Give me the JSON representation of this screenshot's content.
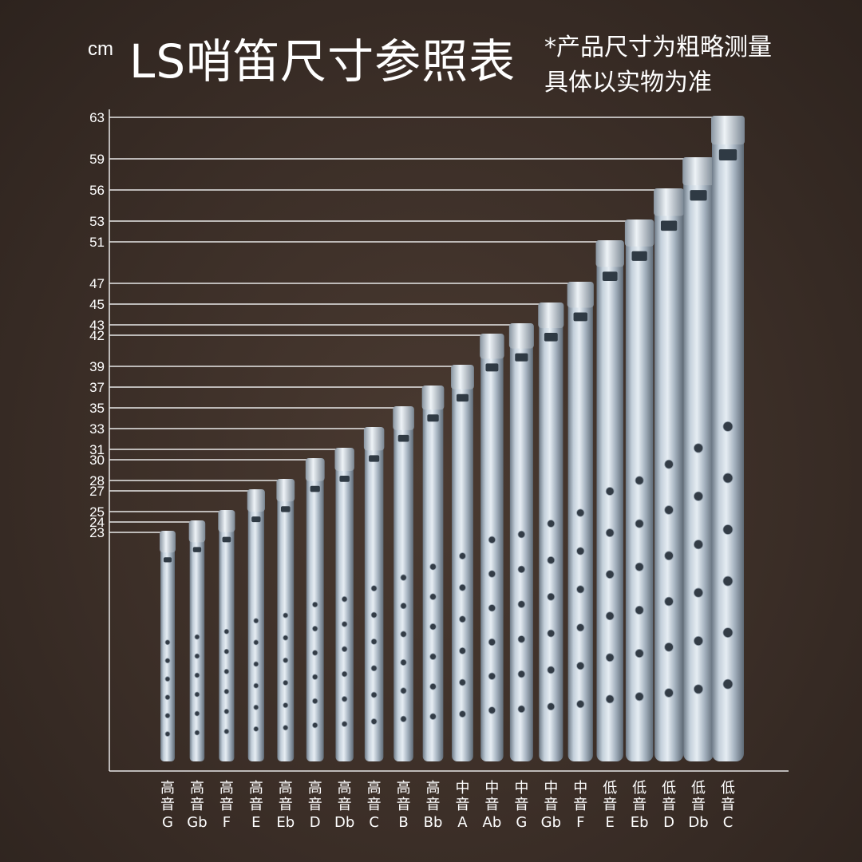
{
  "header": {
    "unit": "cm",
    "title": "LS哨笛尺寸参照表",
    "note_line1": "*产品尺寸为粗略测量",
    "note_line2": "具体以实物为准"
  },
  "chart_data": {
    "type": "bar",
    "title": "LS哨笛尺寸参照表",
    "ylabel": "cm",
    "xlabel": "",
    "ylim": [
      0,
      63
    ],
    "yticks": [
      23,
      24,
      25,
      27,
      28,
      30,
      31,
      33,
      35,
      37,
      39,
      42,
      43,
      45,
      47,
      51,
      53,
      56,
      59,
      63
    ],
    "categories": [
      {
        "register": "高音",
        "key": "G"
      },
      {
        "register": "高音",
        "key": "Gb"
      },
      {
        "register": "高音",
        "key": "F"
      },
      {
        "register": "高音",
        "key": "E"
      },
      {
        "register": "高音",
        "key": "Eb"
      },
      {
        "register": "高音",
        "key": "D"
      },
      {
        "register": "高音",
        "key": "Db"
      },
      {
        "register": "高音",
        "key": "C"
      },
      {
        "register": "高音",
        "key": "B"
      },
      {
        "register": "高音",
        "key": "Bb"
      },
      {
        "register": "中音",
        "key": "A"
      },
      {
        "register": "中音",
        "key": "Ab"
      },
      {
        "register": "中音",
        "key": "G"
      },
      {
        "register": "中音",
        "key": "Gb"
      },
      {
        "register": "中音",
        "key": "F"
      },
      {
        "register": "低音",
        "key": "E"
      },
      {
        "register": "低音",
        "key": "Eb"
      },
      {
        "register": "低音",
        "key": "D"
      },
      {
        "register": "低音",
        "key": "Db"
      },
      {
        "register": "低音",
        "key": "C"
      }
    ],
    "values": [
      23,
      24,
      25,
      27,
      28,
      30,
      31,
      33,
      35,
      37,
      39,
      42,
      43,
      45,
      47,
      51,
      53,
      56,
      59,
      63
    ],
    "colors": {
      "background": "#3b2e27",
      "tube": "#a9b6c3",
      "tube_highlight": "#e2e9ef",
      "gridline": "#e8e8e8"
    }
  }
}
